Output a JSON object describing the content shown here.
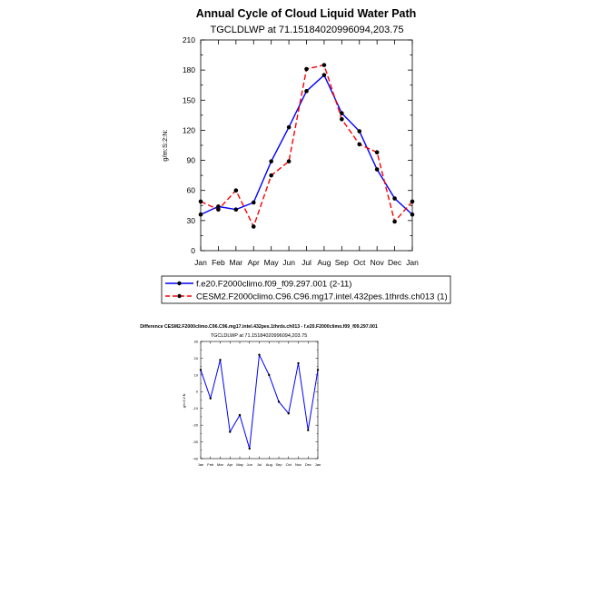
{
  "chart_data": [
    {
      "type": "line",
      "title": "Annual Cycle of Cloud Liquid Water Path",
      "subtitle": "TGCLDLWP at 71.15184020996094,203.75",
      "ylabel": "g/m:S:2:N:",
      "xlabel": "",
      "categories": [
        "Jan",
        "Feb",
        "Mar",
        "Apr",
        "May",
        "Jun",
        "Jul",
        "Aug",
        "Sep",
        "Oct",
        "Nov",
        "Dec",
        "Jan"
      ],
      "ylim": [
        0,
        210
      ],
      "yticks": [
        0,
        30,
        60,
        90,
        120,
        150,
        180,
        210
      ],
      "grid": false,
      "legend_position": "bottom",
      "series": [
        {
          "name": "f.e20.F2000climo.f09_f09.297.001 (2-11)",
          "color": "#0000ff",
          "dash": "solid",
          "values": [
            36,
            44,
            41,
            48,
            89,
            123,
            159,
            175,
            137,
            119,
            81,
            52,
            36
          ]
        },
        {
          "name": "CESM2.F2000climo.C96.C96.mg17.intel.432pes.1thrds.ch013 (1)",
          "color": "#ff0000",
          "dash": "dashed",
          "values": [
            49,
            41,
            60,
            24,
            75,
            89,
            181,
            185,
            131,
            106,
            98,
            29,
            49
          ]
        }
      ]
    },
    {
      "type": "line",
      "title": "Difference CESM2.F2000climo.C96.C96.mg17.intel.432pes.1thrds.ch013 - f.e20.F2000climo.f09_f09.297.001",
      "subtitle": "TGCLDLWP at 71.15184020996094,203.75",
      "ylabel": "g/m:S:2:N:",
      "xlabel": "",
      "categories": [
        "Jan",
        "Feb",
        "Mar",
        "Apr",
        "May",
        "Jun",
        "Jul",
        "Aug",
        "Sep",
        "Oct",
        "Nov",
        "Dec",
        "Jan"
      ],
      "ylim": [
        -40,
        30
      ],
      "yticks": [
        -40,
        -30,
        -20,
        -10,
        0,
        10,
        20,
        30
      ],
      "grid": false,
      "series": [
        {
          "color": "#0000ff",
          "dash": "solid",
          "values": [
            13,
            -4,
            19,
            -24,
            -14,
            -34,
            22,
            10,
            -6,
            -13,
            17,
            -23,
            13
          ]
        }
      ]
    }
  ]
}
